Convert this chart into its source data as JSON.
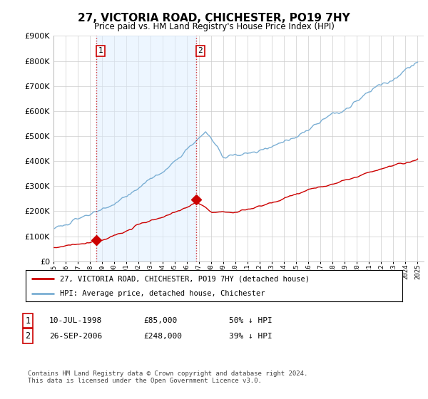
{
  "title": "27, VICTORIA ROAD, CHICHESTER, PO19 7HY",
  "subtitle": "Price paid vs. HM Land Registry's House Price Index (HPI)",
  "legend_line1": "27, VICTORIA ROAD, CHICHESTER, PO19 7HY (detached house)",
  "legend_line2": "HPI: Average price, detached house, Chichester",
  "transaction1_date": "10-JUL-1998",
  "transaction1_price": "£85,000",
  "transaction1_hpi": "50% ↓ HPI",
  "transaction2_date": "26-SEP-2006",
  "transaction2_price": "£248,000",
  "transaction2_hpi": "39% ↓ HPI",
  "footnote": "Contains HM Land Registry data © Crown copyright and database right 2024.\nThis data is licensed under the Open Government Licence v3.0.",
  "red_color": "#cc0000",
  "blue_color": "#7bafd4",
  "blue_fill": "#ddeeff",
  "background_color": "#ffffff",
  "grid_color": "#cccccc",
  "ylim": [
    0,
    900000
  ],
  "yticks": [
    0,
    100000,
    200000,
    300000,
    400000,
    500000,
    600000,
    700000,
    800000,
    900000
  ],
  "transaction1_x": 1998.54,
  "transaction1_y": 85000,
  "transaction2_x": 2006.74,
  "transaction2_y": 248000,
  "xmin": 1995,
  "xmax": 2025.5
}
